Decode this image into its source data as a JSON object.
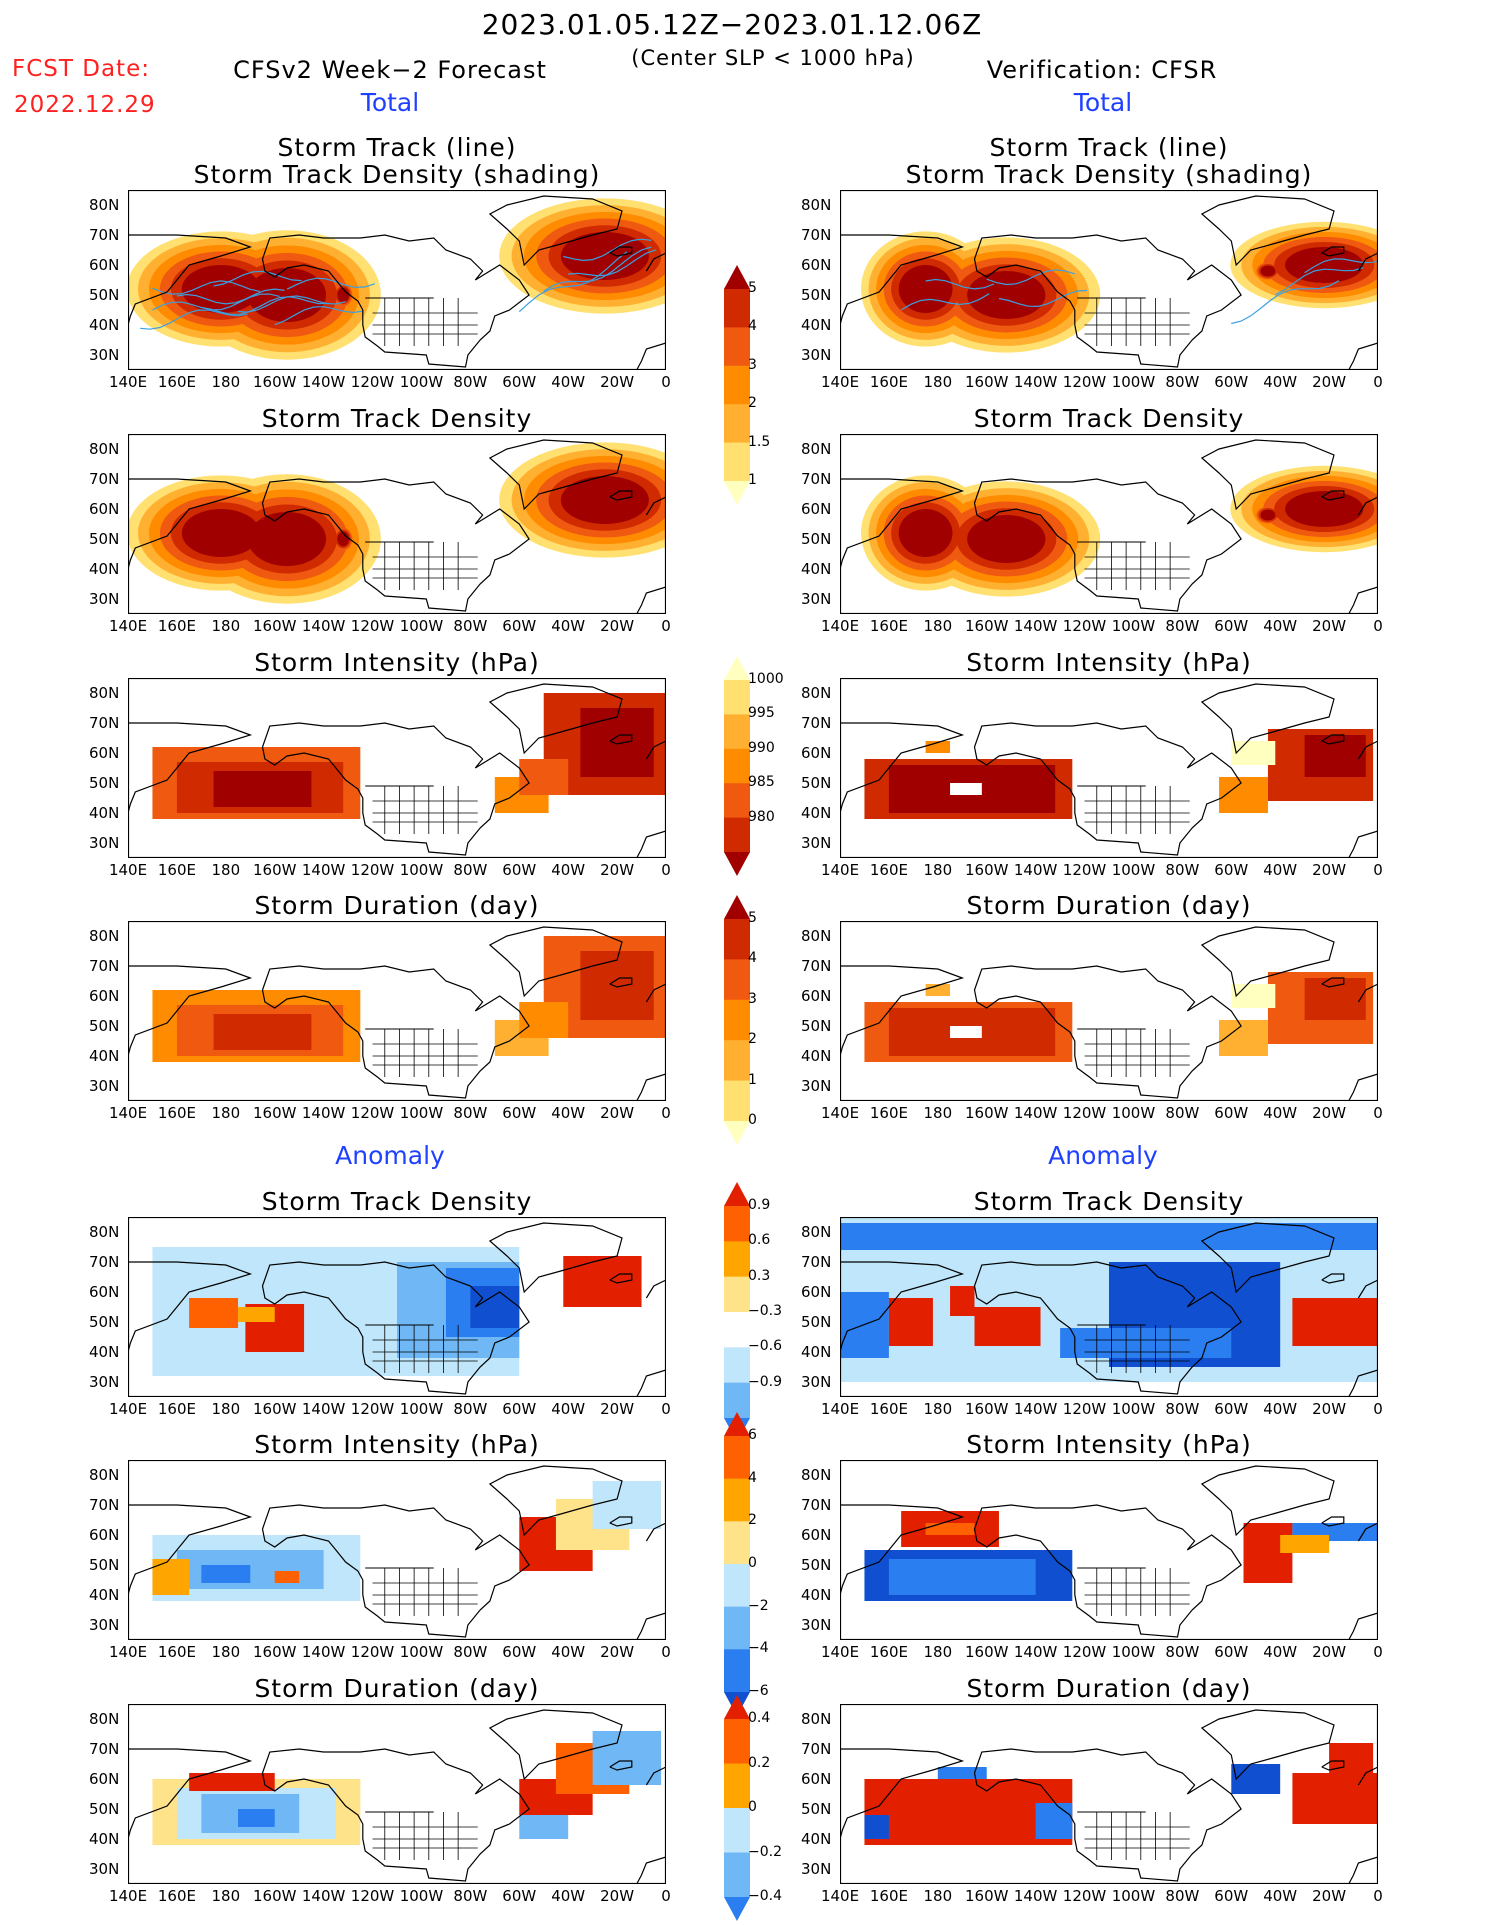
{
  "header": {
    "period": "2023.01.05.12Z−2023.01.12.06Z",
    "subtitle": "(Center SLP < 1000 hPa)",
    "fcst_label": "FCST Date:",
    "fcst_date": "2022.12.29",
    "left_title": "CFSv2 Week−2 Forecast",
    "right_title": "Verification: CFSR",
    "total_label": "Total",
    "anomaly_label": "Anomaly"
  },
  "panel_titles": {
    "track_line": "Storm Track (line)",
    "track_shading": "Storm Track Density (shading)",
    "density": "Storm Track Density",
    "intensity": "Storm Intensity (hPa)",
    "duration": "Storm Duration (day)"
  },
  "axes": {
    "lat_labels": [
      "80N",
      "70N",
      "60N",
      "50N",
      "40N",
      "30N"
    ],
    "lon_labels": [
      "140E",
      "160E",
      "180",
      "160W",
      "140W",
      "120W",
      "100W",
      "80W",
      "60W",
      "40W",
      "20W",
      "0"
    ]
  },
  "colorbars": {
    "density_total": [
      "5",
      "4",
      "3",
      "2",
      "1.5",
      "1"
    ],
    "intensity_total": [
      "1000",
      "995",
      "990",
      "985",
      "980"
    ],
    "duration_total": [
      "5",
      "4",
      "3",
      "2",
      "1",
      "0"
    ],
    "density_anom": [
      "0.9",
      "0.6",
      "0.3",
      "−0.3",
      "−0.6",
      "−0.9"
    ],
    "intensity_anom": [
      "6",
      "4",
      "2",
      "0",
      "−2",
      "−4",
      "−6"
    ],
    "duration_anom": [
      "0.4",
      "0.2",
      "0",
      "−0.2",
      "−0.4"
    ]
  },
  "colors": {
    "total_scale": [
      "#ffffc0",
      "#ffe070",
      "#ffb030",
      "#ff8c00",
      "#f05a10",
      "#d02a00",
      "#a00000"
    ],
    "anom_scale": [
      "#1050d0",
      "#2a7ef0",
      "#70b8f5",
      "#bfe6fa",
      "#ffffff",
      "#ffe38a",
      "#ffa500",
      "#ff6000",
      "#e22000"
    ],
    "track_line": "#3aa0e0"
  }
}
